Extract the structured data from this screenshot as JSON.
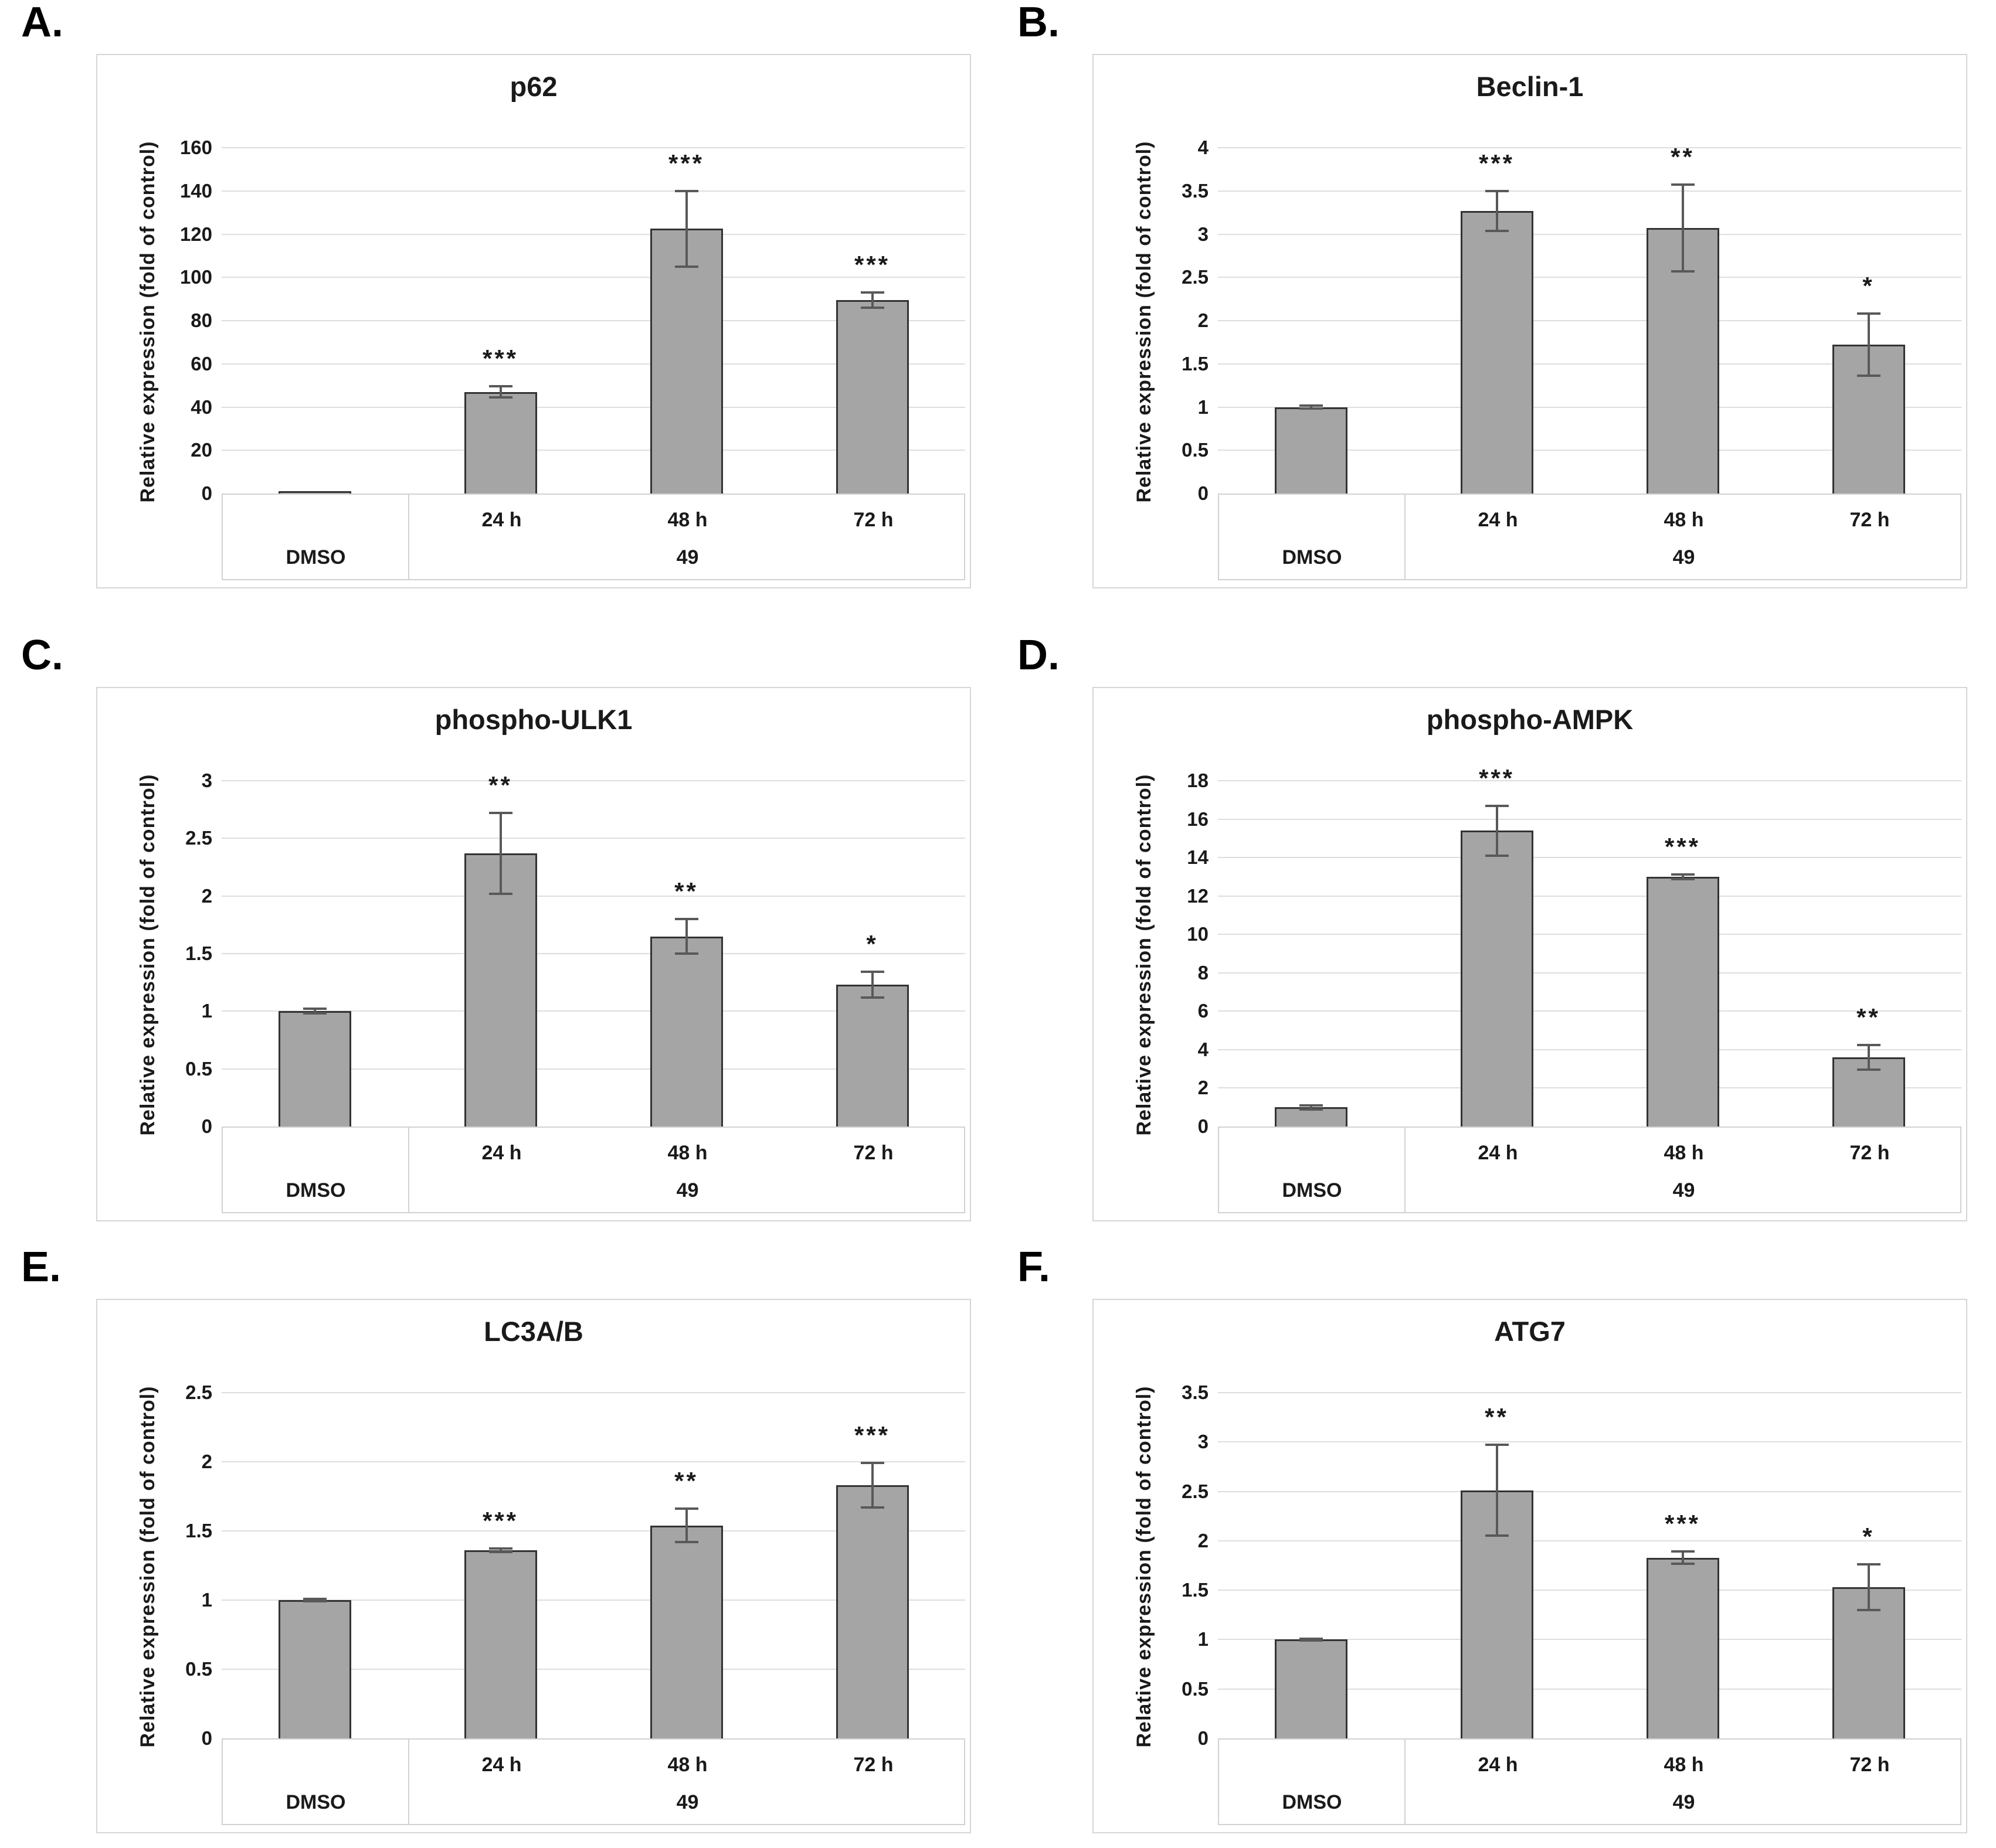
{
  "figure": {
    "y_axis_label": "Relative expression (fold of control)",
    "control_label": "DMSO",
    "treatment_group_label": "49",
    "time_labels": [
      "24 h",
      "48 h",
      "72 h"
    ]
  },
  "colors": {
    "bar_fill": "#a5a5a5",
    "bar_border": "#333333",
    "error_bar": "#595959",
    "gridline": "#dedede",
    "frame": "#d6d6d6",
    "text": "#000000",
    "background": "#ffffff"
  },
  "chart_data": [
    {
      "type": "bar",
      "panel": "A",
      "panel_label": "A.",
      "title": "p62",
      "ylabel": "Relative expression (fold of control)",
      "categories": [
        "DMSO",
        "24 h",
        "48 h",
        "72 h"
      ],
      "group_label": "49",
      "group_spans_categories": [
        "24 h",
        "48 h",
        "72 h"
      ],
      "values": [
        1,
        47,
        122.5,
        89.5
      ],
      "errors": [
        0,
        2.5,
        17.5,
        3.5
      ],
      "significance": [
        "",
        "***",
        "***",
        "***"
      ],
      "ylim": [
        0,
        160
      ],
      "ytick_step": 20,
      "grid": "horizontal",
      "legend": "none"
    },
    {
      "type": "bar",
      "panel": "B",
      "panel_label": "B.",
      "title": "Beclin-1",
      "ylabel": "Relative expression (fold of control)",
      "categories": [
        "DMSO",
        "24 h",
        "48 h",
        "72 h"
      ],
      "group_label": "49",
      "group_spans_categories": [
        "24 h",
        "48 h",
        "72 h"
      ],
      "values": [
        1,
        3.27,
        3.07,
        1.72
      ],
      "errors": [
        0.02,
        0.23,
        0.5,
        0.36
      ],
      "significance": [
        "",
        "***",
        "**",
        "*"
      ],
      "ylim": [
        0,
        4
      ],
      "ytick_step": 0.5,
      "grid": "horizontal",
      "legend": "none"
    },
    {
      "type": "bar",
      "panel": "C",
      "panel_label": "C.",
      "title": "phospho-ULK1",
      "ylabel": "Relative expression (fold of control)",
      "categories": [
        "DMSO",
        "24 h",
        "48 h",
        "72 h"
      ],
      "group_label": "49",
      "group_spans_categories": [
        "24 h",
        "48 h",
        "72 h"
      ],
      "values": [
        1,
        2.37,
        1.65,
        1.23
      ],
      "errors": [
        0.02,
        0.35,
        0.15,
        0.11
      ],
      "significance": [
        "",
        "**",
        "**",
        "*"
      ],
      "ylim": [
        0,
        3
      ],
      "ytick_step": 0.5,
      "grid": "horizontal",
      "legend": "none"
    },
    {
      "type": "bar",
      "panel": "D",
      "panel_label": "D.",
      "title": "phospho-AMPK",
      "ylabel": "Relative expression (fold of control)",
      "categories": [
        "DMSO",
        "24 h",
        "48 h",
        "72 h"
      ],
      "group_label": "49",
      "group_spans_categories": [
        "24 h",
        "48 h",
        "72 h"
      ],
      "values": [
        1,
        15.4,
        13,
        3.6
      ],
      "errors": [
        0.1,
        1.3,
        0.12,
        0.65
      ],
      "significance": [
        "",
        "***",
        "***",
        "**"
      ],
      "ylim": [
        0,
        18
      ],
      "ytick_step": 2,
      "grid": "horizontal",
      "legend": "none"
    },
    {
      "type": "bar",
      "panel": "E",
      "panel_label": "E.",
      "title": "LC3A/B",
      "ylabel": "Relative expression (fold of control)",
      "categories": [
        "DMSO",
        "24 h",
        "48 h",
        "72 h"
      ],
      "group_label": "49",
      "group_spans_categories": [
        "24 h",
        "48 h",
        "72 h"
      ],
      "values": [
        1,
        1.36,
        1.54,
        1.83
      ],
      "errors": [
        0.01,
        0.012,
        0.12,
        0.16
      ],
      "significance": [
        "",
        "***",
        "**",
        "***"
      ],
      "ylim": [
        0,
        2.5
      ],
      "ytick_step": 0.5,
      "grid": "horizontal",
      "legend": "none"
    },
    {
      "type": "bar",
      "panel": "F",
      "panel_label": "F.",
      "title": "ATG7",
      "ylabel": "Relative expression (fold of control)",
      "categories": [
        "DMSO",
        "24 h",
        "48 h",
        "72 h"
      ],
      "group_label": "49",
      "group_spans_categories": [
        "24 h",
        "48 h",
        "72 h"
      ],
      "values": [
        1,
        2.51,
        1.83,
        1.53
      ],
      "errors": [
        0.01,
        0.46,
        0.06,
        0.23
      ],
      "significance": [
        "",
        "**",
        "***",
        "*"
      ],
      "ylim": [
        0,
        3.5
      ],
      "ytick_step": 0.5,
      "grid": "horizontal",
      "legend": "none"
    }
  ]
}
